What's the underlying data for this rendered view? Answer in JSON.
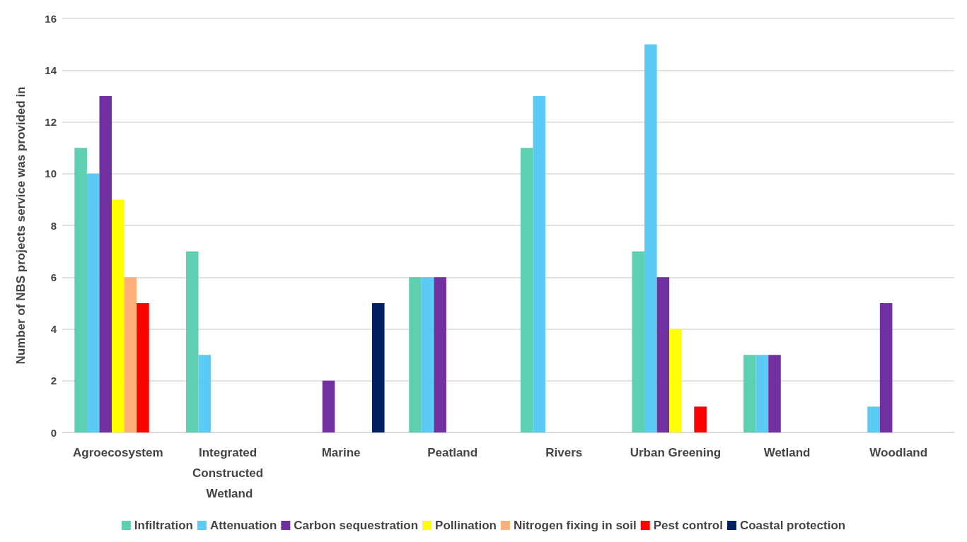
{
  "chart_data": {
    "type": "bar",
    "ylabel": "Number of NBS projects service was provided in",
    "categories": [
      "Agroecosystem",
      "Integrated Constructed Wetland",
      "Marine",
      "Peatland",
      "Rivers",
      "Urban Greening",
      "Wetland",
      "Woodland"
    ],
    "series": [
      {
        "name": "Infiltration",
        "color": "#5ecfb1",
        "values": [
          11,
          7,
          null,
          6,
          11,
          7,
          3,
          null
        ]
      },
      {
        "name": "Attenuation",
        "color": "#5bcbf5",
        "values": [
          10,
          3,
          null,
          6,
          13,
          15,
          3,
          1
        ]
      },
      {
        "name": "Carbon sequestration",
        "color": "#7030a0",
        "values": [
          13,
          null,
          2,
          6,
          null,
          6,
          3,
          5
        ]
      },
      {
        "name": "Pollination",
        "color": "#ffff00",
        "values": [
          9,
          null,
          null,
          null,
          null,
          4,
          null,
          null
        ]
      },
      {
        "name": "Nitrogen fixing in soil",
        "color": "#ffb07a",
        "values": [
          6,
          null,
          null,
          null,
          null,
          null,
          null,
          null
        ]
      },
      {
        "name": "Pest control",
        "color": "#ff0000",
        "values": [
          5,
          null,
          null,
          null,
          null,
          1,
          null,
          null
        ]
      },
      {
        "name": "Coastal protection",
        "color": "#002060",
        "values": [
          null,
          null,
          5,
          null,
          null,
          null,
          null,
          null
        ]
      }
    ],
    "ylim": [
      0,
      16
    ],
    "yticks": [
      0,
      2,
      4,
      6,
      8,
      10,
      12,
      14,
      16
    ],
    "grid": "y",
    "legend": "bottom"
  }
}
